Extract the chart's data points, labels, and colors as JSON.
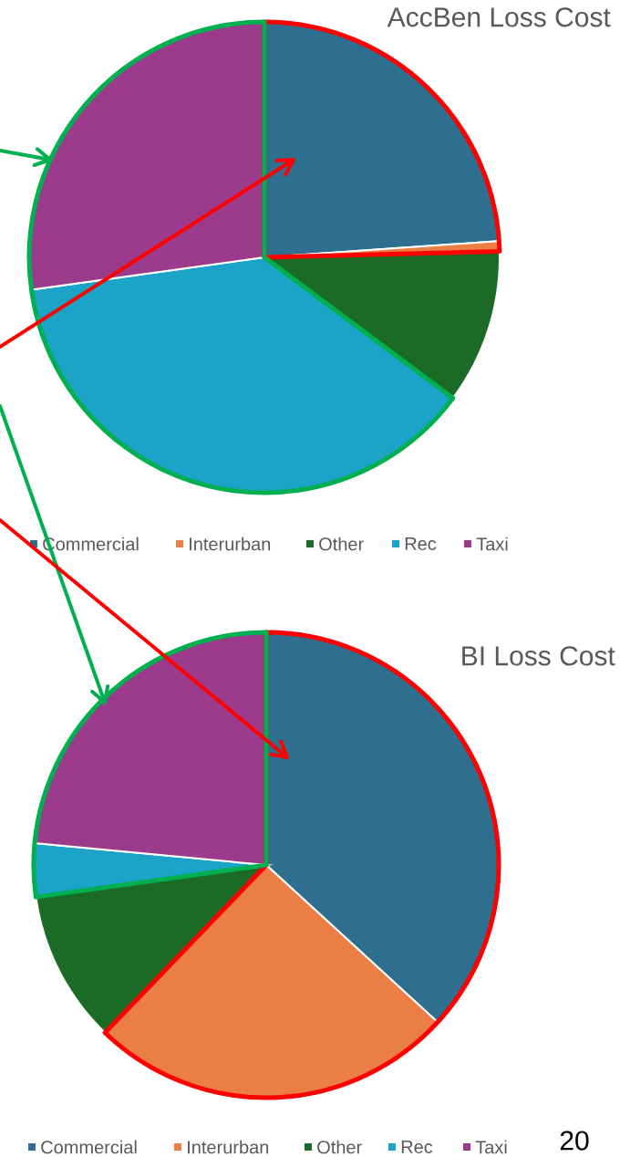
{
  "chart_data": [
    {
      "type": "pie",
      "title": "AccBen Loss Cost",
      "categories": [
        "Commercial",
        "Interurban",
        "Other",
        "Rec",
        "Taxi"
      ],
      "values": [
        23.9,
        0.7,
        10.6,
        37.6,
        27.2
      ],
      "colors": [
        "#2e6e8e",
        "#ea7e45",
        "#1b6b27",
        "#1ca3c8",
        "#9c3b8c"
      ],
      "legend": "bottom"
    },
    {
      "type": "pie",
      "title": "BI Loss Cost",
      "categories": [
        "Commercial",
        "Interurban",
        "Other",
        "Rec",
        "Taxi"
      ],
      "values": [
        36.8,
        25.4,
        10.6,
        3.7,
        23.5
      ],
      "colors": [
        "#2e6e8e",
        "#ea7e45",
        "#1b6b27",
        "#1ca3c8",
        "#9c3b8c"
      ],
      "legend": "bottom",
      "annotations": [
        "20"
      ]
    }
  ]
}
